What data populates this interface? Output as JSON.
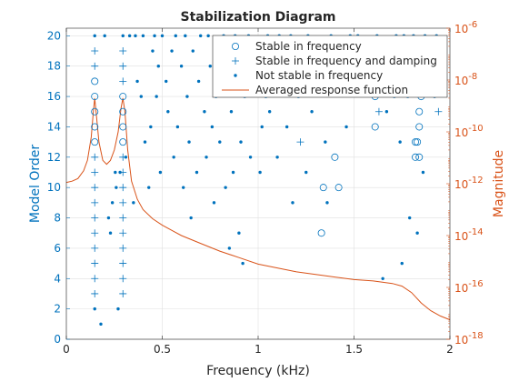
{
  "colors": {
    "left_axis": "#0072BD",
    "right_axis": "#D95319",
    "bottom_axis": "#262626",
    "grid": "#DFDFDF",
    "markers": "#0072BD",
    "curve": "#D95319"
  },
  "chart_data": {
    "type": "scatter",
    "title": "Stabilization Diagram",
    "xlabel": "Frequency (kHz)",
    "ylabel": "Model Order",
    "ylabel_right": "Magnitude",
    "xlim": [
      0,
      2
    ],
    "ylim": [
      0,
      20.5
    ],
    "y2lim_log10": [
      -18,
      -6
    ],
    "y2_scale": "log",
    "grid": true,
    "legend_position": "top-right",
    "x_ticks": [
      "0",
      "0.5",
      "1",
      "1.5",
      "2"
    ],
    "y_ticks": [
      "0",
      "2",
      "4",
      "6",
      "8",
      "10",
      "12",
      "14",
      "16",
      "18",
      "20"
    ],
    "y2_ticks": [
      {
        "base": "10",
        "exp": "-6"
      },
      {
        "base": "10",
        "exp": "-8"
      },
      {
        "base": "10",
        "exp": "-10"
      },
      {
        "base": "10",
        "exp": "-12"
      },
      {
        "base": "10",
        "exp": "-14"
      },
      {
        "base": "10",
        "exp": "-16"
      },
      {
        "base": "10",
        "exp": "-18"
      }
    ],
    "series": [
      {
        "name": "Stable in frequency",
        "marker": "circle",
        "points": [
          [
            0.148,
            17
          ],
          [
            0.148,
            16
          ],
          [
            0.148,
            15
          ],
          [
            0.148,
            14
          ],
          [
            0.148,
            13
          ],
          [
            0.295,
            16
          ],
          [
            0.295,
            15
          ],
          [
            0.295,
            14
          ],
          [
            0.295,
            13
          ],
          [
            1.33,
            7
          ],
          [
            1.34,
            10
          ],
          [
            1.4,
            12
          ],
          [
            1.42,
            10
          ],
          [
            1.61,
            16
          ],
          [
            1.61,
            14
          ],
          [
            1.82,
            13
          ],
          [
            1.82,
            12
          ],
          [
            1.83,
            13
          ],
          [
            1.84,
            12
          ],
          [
            1.84,
            14
          ],
          [
            1.84,
            15
          ],
          [
            1.85,
            16
          ],
          [
            1.85,
            17
          ]
        ]
      },
      {
        "name": "Stable in frequency and damping",
        "marker": "plus",
        "points": [
          [
            0.148,
            19
          ],
          [
            0.148,
            18
          ],
          [
            0.148,
            12
          ],
          [
            0.148,
            11
          ],
          [
            0.148,
            10
          ],
          [
            0.148,
            9
          ],
          [
            0.148,
            8
          ],
          [
            0.148,
            7
          ],
          [
            0.148,
            6
          ],
          [
            0.148,
            5
          ],
          [
            0.148,
            4
          ],
          [
            0.148,
            3
          ],
          [
            0.295,
            19
          ],
          [
            0.295,
            18
          ],
          [
            0.295,
            17
          ],
          [
            0.295,
            12
          ],
          [
            0.295,
            11
          ],
          [
            0.295,
            10
          ],
          [
            0.295,
            9
          ],
          [
            0.295,
            8
          ],
          [
            0.295,
            7
          ],
          [
            0.295,
            6
          ],
          [
            0.295,
            5
          ],
          [
            0.295,
            4
          ],
          [
            0.295,
            3
          ],
          [
            1.22,
            13
          ],
          [
            1.63,
            15
          ],
          [
            1.94,
            15
          ]
        ]
      },
      {
        "name": "Not stable in frequency",
        "marker": "dot",
        "points": [
          [
            0.148,
            20
          ],
          [
            0.148,
            2
          ],
          [
            0.18,
            1
          ],
          [
            0.2,
            20
          ],
          [
            0.22,
            8
          ],
          [
            0.23,
            7
          ],
          [
            0.24,
            9
          ],
          [
            0.255,
            11
          ],
          [
            0.26,
            10
          ],
          [
            0.27,
            2
          ],
          [
            0.28,
            11
          ],
          [
            0.295,
            20
          ],
          [
            0.31,
            12
          ],
          [
            0.33,
            20
          ],
          [
            0.35,
            9
          ],
          [
            0.36,
            20
          ],
          [
            0.37,
            17
          ],
          [
            0.39,
            16
          ],
          [
            0.4,
            20
          ],
          [
            0.41,
            13
          ],
          [
            0.43,
            10
          ],
          [
            0.44,
            14
          ],
          [
            0.45,
            19
          ],
          [
            0.46,
            20
          ],
          [
            0.47,
            16
          ],
          [
            0.48,
            18
          ],
          [
            0.49,
            11
          ],
          [
            0.5,
            20
          ],
          [
            0.52,
            17
          ],
          [
            0.53,
            15
          ],
          [
            0.55,
            19
          ],
          [
            0.56,
            12
          ],
          [
            0.57,
            20
          ],
          [
            0.58,
            14
          ],
          [
            0.6,
            18
          ],
          [
            0.61,
            10
          ],
          [
            0.62,
            20
          ],
          [
            0.63,
            16
          ],
          [
            0.64,
            13
          ],
          [
            0.65,
            8
          ],
          [
            0.66,
            19
          ],
          [
            0.68,
            11
          ],
          [
            0.69,
            17
          ],
          [
            0.7,
            20
          ],
          [
            0.72,
            15
          ],
          [
            0.73,
            12
          ],
          [
            0.74,
            20
          ],
          [
            0.75,
            18
          ],
          [
            0.76,
            14
          ],
          [
            0.77,
            9
          ],
          [
            0.78,
            16
          ],
          [
            0.79,
            19
          ],
          [
            0.8,
            13
          ],
          [
            0.82,
            20
          ],
          [
            0.83,
            10
          ],
          [
            0.84,
            17
          ],
          [
            0.85,
            6
          ],
          [
            0.86,
            15
          ],
          [
            0.87,
            11
          ],
          [
            0.88,
            20
          ],
          [
            0.89,
            18
          ],
          [
            0.9,
            7
          ],
          [
            0.91,
            13
          ],
          [
            0.92,
            5
          ],
          [
            0.93,
            16
          ],
          [
            0.95,
            20
          ],
          [
            0.96,
            12
          ],
          [
            0.98,
            17
          ],
          [
            1.0,
            19
          ],
          [
            1.01,
            11
          ],
          [
            1.02,
            14
          ],
          [
            1.04,
            16
          ],
          [
            1.05,
            20
          ],
          [
            1.06,
            15
          ],
          [
            1.08,
            18
          ],
          [
            1.1,
            12
          ],
          [
            1.11,
            20
          ],
          [
            1.13,
            17
          ],
          [
            1.15,
            14
          ],
          [
            1.17,
            20
          ],
          [
            1.18,
            9
          ],
          [
            1.2,
            19
          ],
          [
            1.21,
            16
          ],
          [
            1.23,
            18
          ],
          [
            1.25,
            11
          ],
          [
            1.26,
            20
          ],
          [
            1.28,
            15
          ],
          [
            1.3,
            17
          ],
          [
            1.31,
            19
          ],
          [
            1.35,
            13
          ],
          [
            1.36,
            9
          ],
          [
            1.38,
            20
          ],
          [
            1.44,
            18
          ],
          [
            1.46,
            14
          ],
          [
            1.48,
            20
          ],
          [
            1.5,
            19
          ],
          [
            1.52,
            20
          ],
          [
            1.55,
            19
          ],
          [
            1.57,
            18
          ],
          [
            1.59,
            17
          ],
          [
            1.62,
            20
          ],
          [
            1.64,
            19
          ],
          [
            1.65,
            4
          ],
          [
            1.67,
            15
          ],
          [
            1.69,
            17
          ],
          [
            1.7,
            19
          ],
          [
            1.71,
            16
          ],
          [
            1.72,
            20
          ],
          [
            1.73,
            18
          ],
          [
            1.74,
            13
          ],
          [
            1.75,
            5
          ],
          [
            1.76,
            20
          ],
          [
            1.77,
            19
          ],
          [
            1.78,
            16
          ],
          [
            1.79,
            8
          ],
          [
            1.8,
            18
          ],
          [
            1.81,
            20
          ],
          [
            1.83,
            7
          ],
          [
            1.86,
            11
          ],
          [
            1.87,
            20
          ],
          [
            1.88,
            19
          ],
          [
            1.9,
            18
          ],
          [
            1.92,
            16
          ],
          [
            1.93,
            20
          ],
          [
            1.95,
            19
          ],
          [
            1.96,
            17
          ]
        ]
      },
      {
        "name": "Averaged response function",
        "marker": "line",
        "y_axis": "right",
        "points_log10": [
          [
            0.0,
            -11.95
          ],
          [
            0.03,
            -11.9
          ],
          [
            0.06,
            -11.8
          ],
          [
            0.09,
            -11.5
          ],
          [
            0.11,
            -11.1
          ],
          [
            0.13,
            -10.2
          ],
          [
            0.14,
            -9.3
          ],
          [
            0.148,
            -8.7
          ],
          [
            0.156,
            -9.3
          ],
          [
            0.17,
            -10.4
          ],
          [
            0.19,
            -11.1
          ],
          [
            0.21,
            -11.25
          ],
          [
            0.23,
            -11.1
          ],
          [
            0.25,
            -10.7
          ],
          [
            0.27,
            -10.0
          ],
          [
            0.285,
            -9.1
          ],
          [
            0.295,
            -8.7
          ],
          [
            0.305,
            -9.2
          ],
          [
            0.32,
            -10.7
          ],
          [
            0.34,
            -11.9
          ],
          [
            0.37,
            -12.6
          ],
          [
            0.4,
            -13.0
          ],
          [
            0.45,
            -13.35
          ],
          [
            0.5,
            -13.6
          ],
          [
            0.6,
            -14.0
          ],
          [
            0.7,
            -14.3
          ],
          [
            0.8,
            -14.6
          ],
          [
            0.9,
            -14.85
          ],
          [
            1.0,
            -15.1
          ],
          [
            1.1,
            -15.25
          ],
          [
            1.2,
            -15.4
          ],
          [
            1.3,
            -15.5
          ],
          [
            1.4,
            -15.6
          ],
          [
            1.5,
            -15.7
          ],
          [
            1.6,
            -15.75
          ],
          [
            1.7,
            -15.85
          ],
          [
            1.75,
            -15.95
          ],
          [
            1.8,
            -16.2
          ],
          [
            1.85,
            -16.6
          ],
          [
            1.9,
            -16.9
          ],
          [
            1.95,
            -17.1
          ],
          [
            2.0,
            -17.25
          ]
        ]
      }
    ]
  }
}
